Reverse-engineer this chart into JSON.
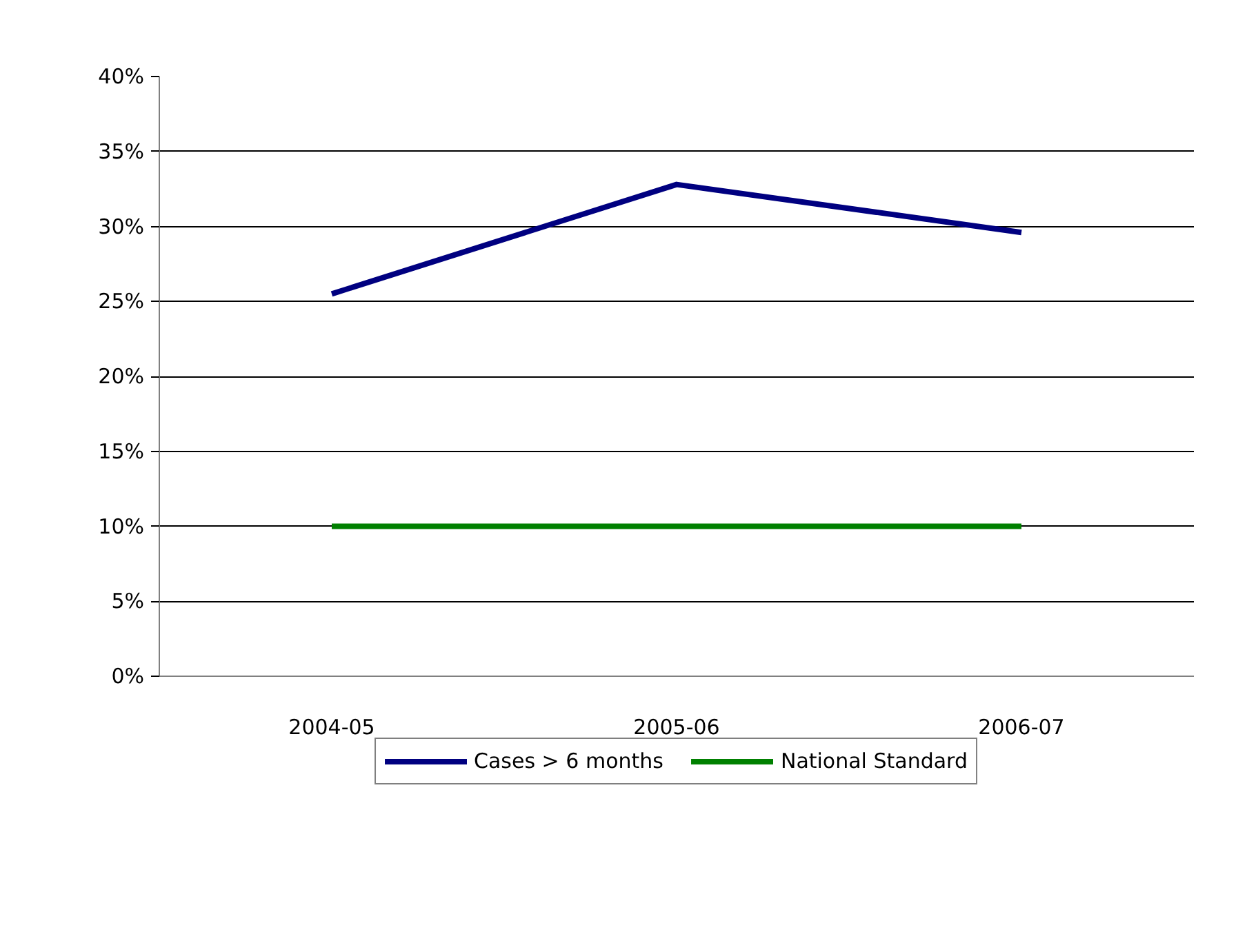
{
  "chart_data": {
    "type": "line",
    "categories": [
      "2004-05",
      "2005-06",
      "2006-07"
    ],
    "series": [
      {
        "name": "Cases > 6 months",
        "color": "#000080",
        "values": [
          25.5,
          32.8,
          29.6
        ]
      },
      {
        "name": "National Standard",
        "color": "#008000",
        "values": [
          10,
          10,
          10
        ]
      }
    ],
    "ylim": [
      0,
      40
    ],
    "yticks": [
      {
        "value": 0,
        "label": "0%"
      },
      {
        "value": 5,
        "label": "5%"
      },
      {
        "value": 10,
        "label": "10%"
      },
      {
        "value": 15,
        "label": "15%"
      },
      {
        "value": 20,
        "label": "20%"
      },
      {
        "value": 25,
        "label": "25%"
      },
      {
        "value": 30,
        "label": "30%"
      },
      {
        "value": 35,
        "label": "35%"
      },
      {
        "value": 40,
        "label": "40%"
      }
    ],
    "grid": "y",
    "legend": "bottom",
    "marker": "none",
    "line_style": "solid"
  }
}
